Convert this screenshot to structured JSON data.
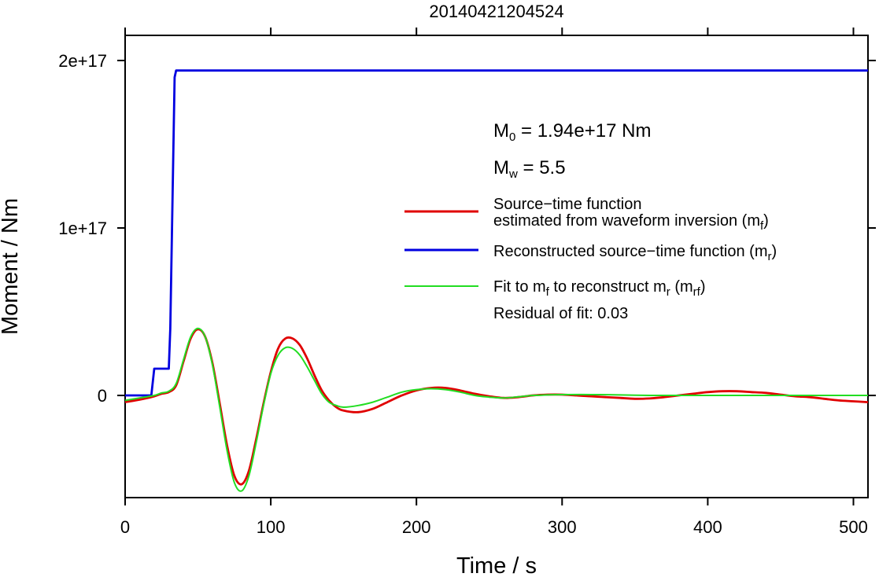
{
  "chart_data": {
    "type": "line",
    "title": "20140421204524",
    "xlabel": "Time / s",
    "ylabel": "Moment / Nm",
    "xlim": [
      0,
      510
    ],
    "ylim": [
      -6.1e+16,
      2.15e+17
    ],
    "x_ticks": [
      0,
      100,
      200,
      300,
      400,
      500
    ],
    "x_tick_labels": [
      "0",
      "100",
      "200",
      "300",
      "400",
      "500"
    ],
    "y_ticks": [
      0,
      1e+17,
      2e+17
    ],
    "y_tick_labels": [
      "0",
      "1e+17",
      "2e+17"
    ],
    "grid": false,
    "annotations": {
      "m0": {
        "base": "M",
        "sub": "0",
        "rest": " = 1.94e+17 Nm"
      },
      "mw": {
        "base": "M",
        "sub": "w",
        "rest": " = 5.5"
      },
      "residual": "Residual of fit: 0.03"
    },
    "legend": [
      {
        "color": "#e00000",
        "lines": [
          [
            {
              "t": "Source−time function"
            }
          ],
          [
            {
              "t": "estimated from waveform inversion (m"
            },
            {
              "t": "f",
              "sub": true
            },
            {
              "t": ")"
            }
          ]
        ]
      },
      {
        "color": "#0000e0",
        "lines": [
          [
            {
              "t": "Reconstructed source−time function (m"
            },
            {
              "t": "r",
              "sub": true
            },
            {
              "t": ")"
            }
          ]
        ]
      },
      {
        "color": "#22dd22",
        "lines": [
          [
            {
              "t": "Fit to m"
            },
            {
              "t": "f",
              "sub": true
            },
            {
              "t": " to reconstruct m"
            },
            {
              "t": "r",
              "sub": true
            },
            {
              "t": " (m"
            },
            {
              "t": "rf",
              "sub": true
            },
            {
              "t": ")"
            }
          ]
        ]
      }
    ],
    "series": [
      {
        "color": "#0000e0",
        "x": [
          0,
          18,
          20,
          30,
          31,
          34,
          35,
          510
        ],
        "y": [
          0,
          0,
          1.6e+16,
          1.6e+16,
          4e+16,
          1.9e+17,
          1.94e+17,
          1.94e+17
        ]
      },
      {
        "color": "#e00000",
        "x": [
          0,
          10,
          20,
          25,
          30,
          35,
          40,
          45,
          50,
          55,
          60,
          65,
          70,
          75,
          80,
          85,
          90,
          95,
          100,
          105,
          110,
          115,
          120,
          125,
          130,
          135,
          140,
          145,
          150,
          160,
          170,
          180,
          190,
          200,
          210,
          220,
          230,
          240,
          250,
          260,
          270,
          280,
          290,
          300,
          310,
          320,
          330,
          340,
          350,
          360,
          370,
          380,
          390,
          400,
          410,
          420,
          430,
          440,
          450,
          460,
          470,
          480,
          490,
          500,
          510
        ],
        "y": [
          -4000000000000000.0,
          -2500000000000000.0,
          -500000000000000.0,
          1000000000000000.0,
          2000000000000000.0,
          6000000000000000.0,
          2e+16,
          3.4e+16,
          3.95e+16,
          3.5e+16,
          1.9e+16,
          -5000000000000000.0,
          -3e+16,
          -4.8e+16,
          -5.3e+16,
          -4.5e+16,
          -2.6e+16,
          -5000000000000000.0,
          1.4e+16,
          2.8e+16,
          3.4e+16,
          3.4e+16,
          3e+16,
          2.2e+16,
          1.2e+16,
          3000000000000000.0,
          -3000000000000000.0,
          -7000000000000000.0,
          -9000000000000000.0,
          -1e+16,
          -8000000000000000.0,
          -4000000000000000.0,
          0,
          3000000000000000.0,
          4500000000000000.0,
          4500000000000000.0,
          3000000000000000.0,
          1000000000000000.0,
          -500000000000000.0,
          -1500000000000000.0,
          -1000000000000000.0,
          0,
          500000000000000.0,
          500000000000000.0,
          0,
          -500000000000000.0,
          -1000000000000000.0,
          -1500000000000000.0,
          -2000000000000000.0,
          -1800000000000000.0,
          -1000000000000000.0,
          0,
          1000000000000000.0,
          2000000000000000.0,
          2500000000000000.0,
          2500000000000000.0,
          2000000000000000.0,
          1500000000000000.0,
          500000000000000.0,
          -500000000000000.0,
          -1000000000000000.0,
          -2000000000000000.0,
          -3000000000000000.0,
          -3500000000000000.0,
          -4000000000000000.0
        ]
      },
      {
        "color": "#22dd22",
        "x": [
          0,
          10,
          20,
          25,
          30,
          35,
          40,
          45,
          50,
          55,
          60,
          65,
          70,
          75,
          80,
          85,
          90,
          95,
          100,
          105,
          110,
          115,
          120,
          125,
          130,
          135,
          140,
          145,
          150,
          160,
          170,
          180,
          190,
          200,
          210,
          220,
          230,
          240,
          250,
          260,
          270,
          280,
          290,
          300,
          320,
          340,
          360,
          380,
          400,
          420,
          440,
          460,
          480,
          500,
          510
        ],
        "y": [
          -3000000000000000.0,
          -1500000000000000.0,
          0,
          1500000000000000.0,
          2500000000000000.0,
          7000000000000000.0,
          2.1e+16,
          3.5e+16,
          4e+16,
          3.5e+16,
          1.8e+16,
          -7000000000000000.0,
          -3.3e+16,
          -5.2e+16,
          -5.7e+16,
          -4.8e+16,
          -2.8e+16,
          -6000000000000000.0,
          1.3e+16,
          2.4e+16,
          2.85e+16,
          2.8e+16,
          2.4e+16,
          1.7e+16,
          9000000000000000.0,
          1000000000000000.0,
          -4000000000000000.0,
          -6000000000000000.0,
          -7000000000000000.0,
          -6000000000000000.0,
          -4000000000000000.0,
          -1000000000000000.0,
          2000000000000000.0,
          3500000000000000.0,
          4000000000000000.0,
          3500000000000000.0,
          2000000000000000.0,
          0,
          -1000000000000000.0,
          -1500000000000000.0,
          -800000000000000.0,
          0,
          300000000000000.0,
          500000000000000.0,
          500000000000000.0,
          300000000000000.0,
          0,
          0,
          0,
          0,
          0,
          0,
          0,
          0,
          0
        ]
      }
    ]
  }
}
